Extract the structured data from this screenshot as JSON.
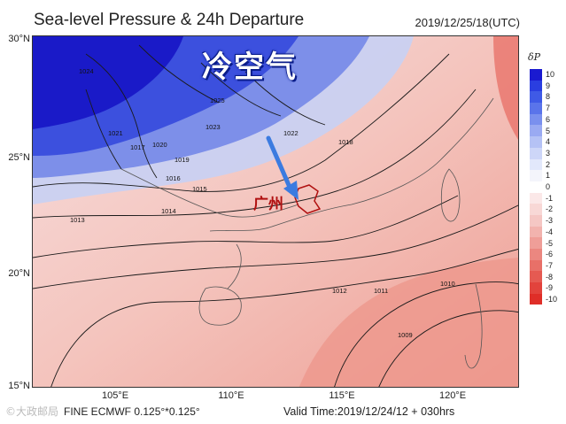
{
  "header": {
    "title": "Sea-level Pressure & 24h Departure",
    "datetime": "2019/12/25/18(UTC)"
  },
  "map": {
    "latitude_labels": [
      "30°N",
      "25°N",
      "20°N",
      "15°N"
    ],
    "longitude_labels": [
      "105°E",
      "110°E",
      "115°E",
      "120°E"
    ],
    "annotations": {
      "cold_air": "冷空气",
      "city": "广州"
    },
    "isobar_labels": [
      "1024",
      "1025",
      "1023",
      "1022",
      "1021",
      "1020",
      "1019",
      "1018",
      "1017",
      "1016",
      "1015",
      "1014",
      "1013",
      "1012",
      "1011",
      "1010",
      "1009"
    ],
    "arrow_color": "#3b7be0",
    "city_outline_color": "#b01010"
  },
  "legend": {
    "title": "δP",
    "labels": [
      "10",
      "9",
      "8",
      "7",
      "6",
      "5",
      "4",
      "3",
      "2",
      "1",
      "0",
      "-1",
      "-2",
      "-3",
      "-4",
      "-5",
      "-6",
      "-7",
      "-8",
      "-9",
      "-10"
    ],
    "colors": [
      "#1a1ad0",
      "#2a3ee0",
      "#3f5ae6",
      "#5a74ea",
      "#7a90ee",
      "#9aaaf2",
      "#b5c2f5",
      "#cdd6f8",
      "#e2e8fb",
      "#f4f5fb",
      "#ffffff",
      "#fbe8e8",
      "#f8d8d6",
      "#f5c7c4",
      "#f2b3ae",
      "#ef9e98",
      "#eb8780",
      "#e87068",
      "#e55a52",
      "#e2433c",
      "#df2e28"
    ]
  },
  "footer": {
    "watermark": "©大政邮局",
    "model": "FINE ECMWF 0.125°*0.125°",
    "valid": "Valid Time:2019/12/24/12 + 030hrs"
  }
}
